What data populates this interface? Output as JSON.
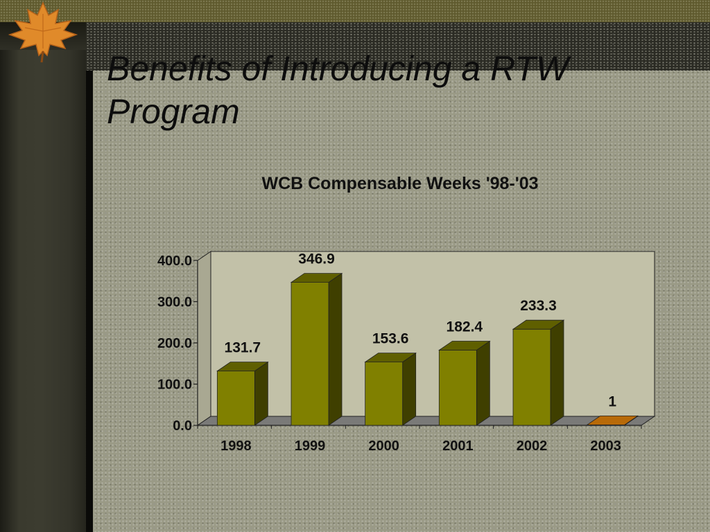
{
  "slide": {
    "title": "Benefits of Introducing a RTW Program"
  },
  "chart_data": {
    "type": "bar",
    "title": "WCB Compensable Weeks '98-'03",
    "xlabel": "",
    "ylabel": "",
    "categories": [
      "1998",
      "1999",
      "2000",
      "2001",
      "2002",
      "2003"
    ],
    "values": [
      131.7,
      346.9,
      153.6,
      182.4,
      233.3,
      1
    ],
    "value_labels": [
      "131.7",
      "346.9",
      "153.6",
      "182.4",
      "233.3",
      "1"
    ],
    "y_ticks": [
      "0.0",
      "100.0",
      "200.0",
      "300.0",
      "400.0"
    ],
    "ylim": [
      0,
      400
    ],
    "grid": false,
    "legend": "none",
    "style": "3d-bar",
    "colors": {
      "bar_front": "#808000",
      "bar_top": "#5f5f00",
      "bar_side": "#3f3f00",
      "highlight_front": "#d27c0a",
      "highlight_top": "#b86a08",
      "plot_back_wall": "#c2c1a8",
      "floor": "#7a7a78",
      "axis": "#202020",
      "title": "#111111"
    }
  }
}
